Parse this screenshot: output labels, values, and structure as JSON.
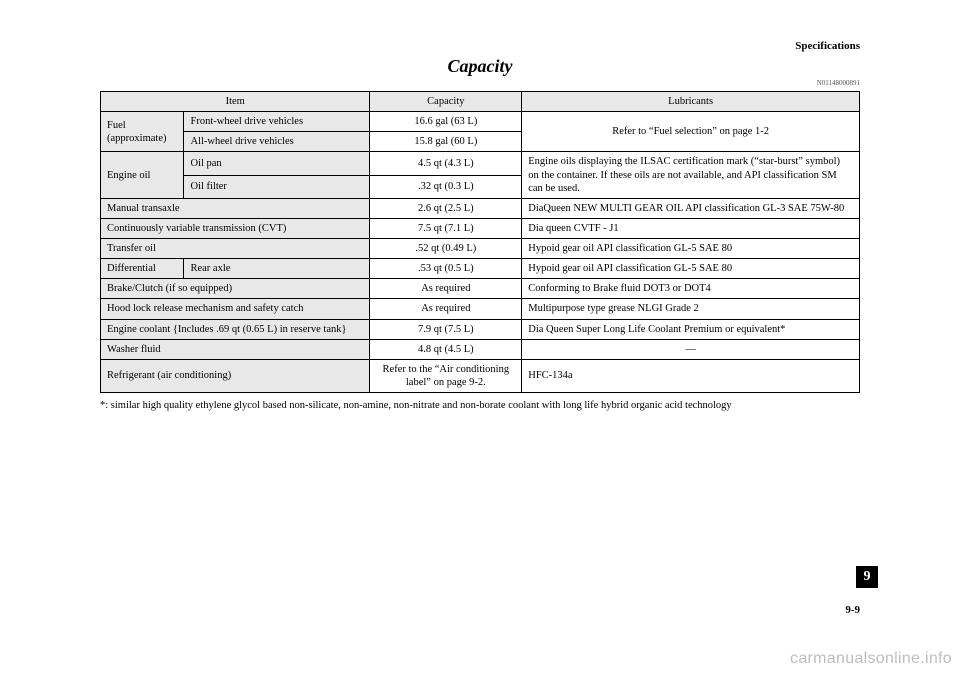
{
  "header": {
    "section": "Specifications"
  },
  "title": "Capacity",
  "docnum": "N01148000891",
  "columns": {
    "c1": "Item",
    "c2": "Capacity",
    "c3": "Lubricants"
  },
  "rows": {
    "fuel": {
      "label": "Fuel (approximate)",
      "fwd": {
        "label": "Front-wheel drive vehicles",
        "cap": "16.6 gal (63 L)"
      },
      "awd": {
        "label": "All-wheel drive vehicles",
        "cap": "15.8 gal (60 L)"
      },
      "lub": "Refer to “Fuel selection” on page 1-2"
    },
    "engine_oil": {
      "label": "Engine oil",
      "pan": {
        "label": "Oil pan",
        "cap": "4.5 qt (4.3 L)"
      },
      "filter": {
        "label": "Oil filter",
        "cap": ".32 qt (0.3 L)"
      },
      "lub": "Engine oils displaying the ILSAC certification mark (“star-burst” symbol) on the container.\nIf these oils are not available, and API classification SM can be used."
    },
    "manual_transaxle": {
      "label": "Manual transaxle",
      "cap": "2.6 qt (2.5 L)",
      "lub": "DiaQueen NEW MULTI GEAR OIL API classification GL-3 SAE 75W-80"
    },
    "cvt": {
      "label": "Continuously variable transmission (CVT)",
      "cap": "7.5 qt (7.1 L)",
      "lub": "Dia queen CVTF - J1"
    },
    "transfer_oil": {
      "label": "Transfer oil",
      "cap": ".52 qt (0.49 L)",
      "lub": "Hypoid gear oil API classification GL-5 SAE 80"
    },
    "differential": {
      "label": "Differential",
      "rear": "Rear axle",
      "cap": ".53 qt (0.5 L)",
      "lub": "Hypoid gear oil API classification GL-5 SAE 80"
    },
    "brake_clutch": {
      "label": "Brake/Clutch (if so equipped)",
      "cap": "As required",
      "lub": "Conforming to Brake fluid DOT3 or DOT4"
    },
    "hood_lock": {
      "label": "Hood lock release mechanism and safety catch",
      "cap": "As required",
      "lub": "Multipurpose type grease NLGI Grade 2"
    },
    "coolant": {
      "label": "Engine coolant\n{Includes .69 qt (0.65 L) in reserve tank}",
      "cap": "7.9 qt (7.5 L)",
      "lub": "Dia Queen Super Long Life Coolant Premium or equivalent*"
    },
    "washer": {
      "label": "Washer fluid",
      "cap": "4.8 qt (4.5 L)",
      "lub": "—"
    },
    "refrigerant": {
      "label": "Refrigerant (air conditioning)",
      "cap": "Refer to the “Air conditioning label” on page 9-2.",
      "lub": "HFC-134a"
    }
  },
  "footnote": "*: similar high quality ethylene glycol based non-silicate, non-amine, non-nitrate and non-borate coolant with long life hybrid organic acid technology",
  "chapter": "9",
  "pagenum": "9-9",
  "watermark": "carmanualsonline.info"
}
